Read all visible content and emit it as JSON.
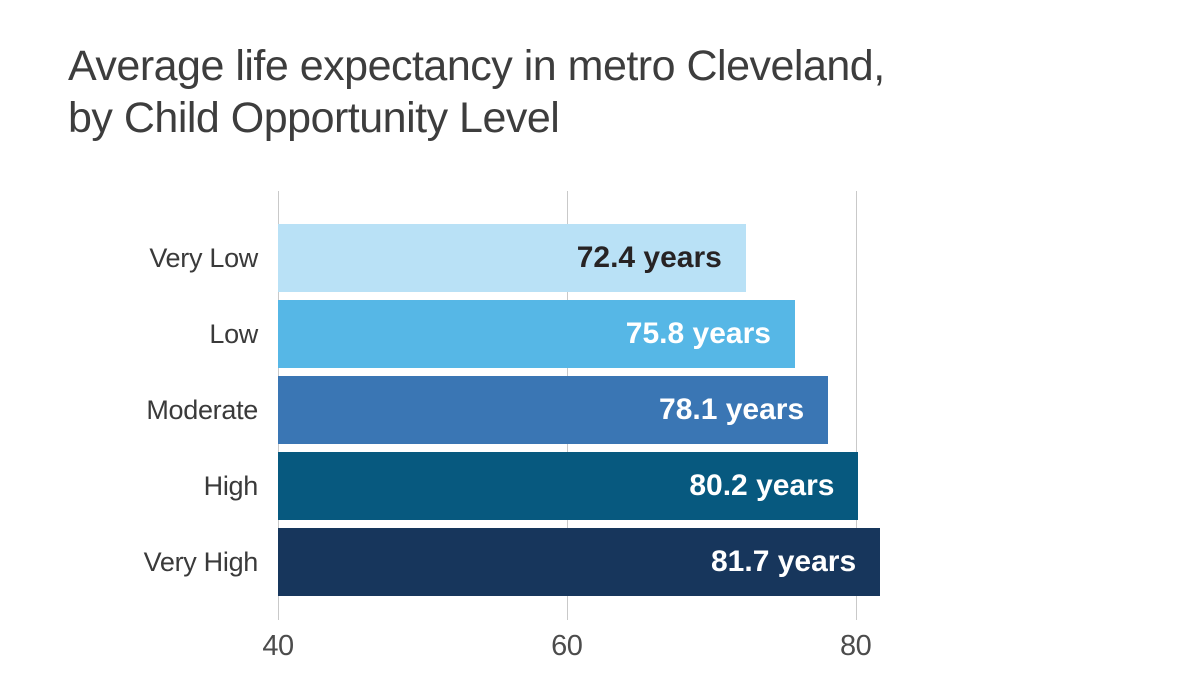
{
  "chart_data": {
    "type": "bar",
    "orientation": "horizontal",
    "title_lines": [
      "Average life expectancy in metro Cleveland,",
      "by Child Opportunity Level"
    ],
    "categories": [
      "Very Low",
      "Low",
      "Moderate",
      "High",
      "Very High"
    ],
    "values": [
      72.4,
      75.8,
      78.1,
      80.2,
      81.7
    ],
    "value_labels": [
      "72.4 years",
      "75.8 years",
      "78.1 years",
      "80.2 years",
      "81.7 years"
    ],
    "unit": "years",
    "xlim": [
      40,
      90
    ],
    "xticks": [
      40,
      60,
      80
    ],
    "grid": true,
    "legend": false,
    "xlabel": "",
    "ylabel": "",
    "colors": {
      "bars": [
        "#b9e1f6",
        "#56b7e6",
        "#3a76b4",
        "#07597f",
        "#17365c"
      ],
      "value_text": [
        "#272324",
        "#ffffff",
        "#ffffff",
        "#ffffff",
        "#ffffff"
      ],
      "gridline": "#c9c9c9",
      "title_text": "#3d3d3d",
      "category_text": "#3a3a3a",
      "tick_text": "#4c4c4c",
      "background": "#ffffff"
    }
  }
}
